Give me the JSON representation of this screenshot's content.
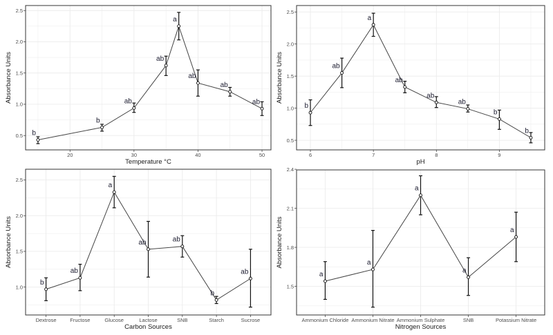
{
  "chart_data": [
    {
      "type": "line",
      "xlabel": "Temperature °C",
      "ylabel": "Absorbance Units",
      "x": [
        15,
        25,
        30,
        35,
        37,
        40,
        45,
        50
      ],
      "values": [
        0.43,
        0.63,
        0.94,
        1.62,
        2.25,
        1.34,
        1.2,
        0.93
      ],
      "error_low": [
        0.37,
        0.57,
        0.87,
        1.46,
        2.03,
        1.13,
        1.13,
        0.82
      ],
      "error_high": [
        0.48,
        0.68,
        1.02,
        1.77,
        2.47,
        1.55,
        1.27,
        1.04
      ],
      "letters": [
        "b",
        "b",
        "ab",
        "ab",
        "a",
        "ab",
        "ab",
        "ab"
      ],
      "xticks": [
        "20",
        "30",
        "40",
        "50"
      ],
      "yticks": [
        "0.5",
        "1.0",
        "1.5",
        "2.0",
        "2.5"
      ],
      "xlim": [
        13.06,
        51.4
      ],
      "ylim": [
        0.27,
        2.58
      ],
      "grid": true
    },
    {
      "type": "line",
      "xlabel": "pH",
      "ylabel": "Absorbance Units",
      "x": [
        6,
        6.5,
        7,
        7.5,
        8,
        8.5,
        9,
        9.5
      ],
      "values": [
        0.93,
        1.55,
        2.3,
        1.33,
        1.09,
        0.99,
        0.83,
        0.54
      ],
      "error_low": [
        0.73,
        1.32,
        2.12,
        1.24,
        1.01,
        0.94,
        0.67,
        0.46
      ],
      "error_high": [
        1.13,
        1.78,
        2.48,
        1.42,
        1.18,
        1.05,
        0.97,
        0.62
      ],
      "letters": [
        "b",
        "ab",
        "a",
        "ab",
        "ab",
        "ab",
        "b",
        "b"
      ],
      "xticks": [
        "6",
        "7",
        "8",
        "9"
      ],
      "yticks": [
        "0.5",
        "1.0",
        "1.5",
        "2.0",
        "2.5"
      ],
      "xlim": [
        5.78,
        9.72
      ],
      "ylim": [
        0.35,
        2.6
      ],
      "grid": true
    },
    {
      "type": "line",
      "xlabel": "Carbon Sources",
      "ylabel": "Absorbance Units",
      "categories": [
        "Dextrose",
        "Fructose",
        "Glucose",
        "Lactose",
        "SNB",
        "Starch",
        "Sucrose"
      ],
      "values": [
        0.97,
        1.13,
        2.33,
        1.53,
        1.57,
        0.82,
        1.12
      ],
      "error_low": [
        0.81,
        0.95,
        2.11,
        1.14,
        1.42,
        0.77,
        0.72
      ],
      "error_high": [
        1.13,
        1.32,
        2.55,
        1.92,
        1.72,
        0.87,
        1.53
      ],
      "letters": [
        "b",
        "ab",
        "a",
        "ab",
        "ab",
        "b",
        "ab"
      ],
      "yticks": [
        "1.0",
        "1.5",
        "2.0",
        "2.5"
      ],
      "ylim": [
        0.61,
        2.65
      ],
      "grid": true
    },
    {
      "type": "line",
      "xlabel": "Nitrogen Sources",
      "ylabel": "Absorbance Units",
      "categories": [
        "Ammonium Chloride",
        "Ammonium Nitrate",
        "Ammonium Sulphate",
        "SNB",
        "Potassium Nitrate"
      ],
      "values": [
        1.54,
        1.63,
        2.2,
        1.57,
        1.88
      ],
      "error_low": [
        1.4,
        1.34,
        2.05,
        1.43,
        1.69
      ],
      "error_high": [
        1.69,
        1.93,
        2.35,
        1.72,
        2.07
      ],
      "letters": [
        "a",
        "a",
        "a",
        "a",
        "a"
      ],
      "yticks": [
        "1.5",
        "1.8",
        "2.1",
        "2.4"
      ],
      "ylim": [
        1.28,
        2.395
      ],
      "grid": true
    }
  ]
}
